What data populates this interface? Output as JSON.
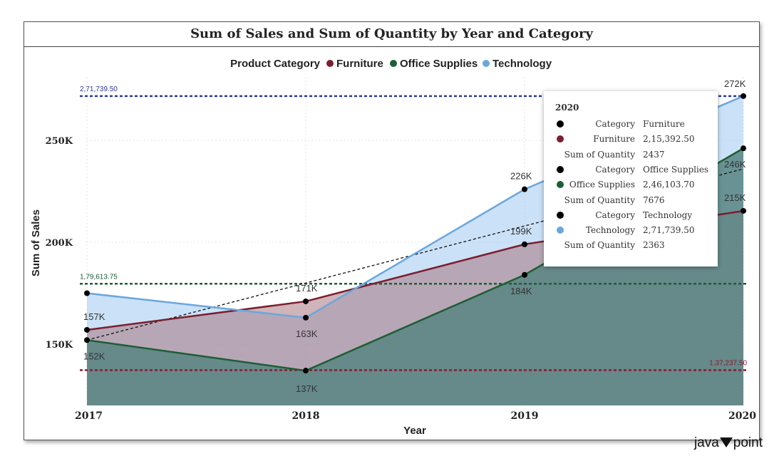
{
  "chart_data": {
    "type": "area",
    "title": "Sum of Sales and Sum of Quantity by Year and Category",
    "legend_title": "Product Category",
    "legend_position": "top-center",
    "xlabel": "Year",
    "ylabel": "Sum of Sales",
    "categories": [
      "2017",
      "2018",
      "2019",
      "2020"
    ],
    "ylim": [
      120000,
      280000
    ],
    "yticks": [
      {
        "value": 150000,
        "label": "150K"
      },
      {
        "value": 200000,
        "label": "200K"
      },
      {
        "value": 250000,
        "label": "250K"
      }
    ],
    "series": [
      {
        "name": "Furniture",
        "color": "#7b1e2e",
        "values": [
          157000,
          171000,
          199000,
          215392.5
        ],
        "labels": [
          "157K",
          "171K",
          "199K",
          "215K"
        ]
      },
      {
        "name": "Office Supplies",
        "color": "#1d5e34",
        "values": [
          152000,
          137000,
          184000,
          246103.7
        ],
        "labels": [
          "152K",
          "137K",
          "184K",
          "246K"
        ]
      },
      {
        "name": "Technology",
        "color": "#6aa7dd",
        "values": [
          175000,
          163000,
          226000,
          271739.5
        ],
        "labels": [
          "",
          "163K",
          "226K",
          "272K"
        ]
      }
    ],
    "reference_lines": [
      {
        "value": 271739.5,
        "label": "2,71,739.50",
        "color": "#2b3a9a",
        "label_side": "left"
      },
      {
        "value": 179613.75,
        "label": "1,79,613.75",
        "color": "#1d5e34",
        "label_side": "left"
      },
      {
        "value": 137237.5,
        "label": "1,37,237.50",
        "color": "#8b1a2b",
        "label_side": "right"
      }
    ],
    "trend_line": {
      "from": 152000,
      "to": 236000,
      "color": "#111111"
    }
  },
  "tooltip": {
    "year": "2020",
    "rows": [
      {
        "label": "Category",
        "value": "Furniture",
        "dot": "#000000"
      },
      {
        "label": "Furniture",
        "value": "2,15,392.50",
        "dot": "#7b1e2e"
      },
      {
        "label": "Sum of Quantity",
        "value": "2437",
        "dot": ""
      },
      {
        "label": "Category",
        "value": "Office Supplies",
        "dot": "#000000"
      },
      {
        "label": "Office Supplies",
        "value": "2,46,103.70",
        "dot": "#1d5e34"
      },
      {
        "label": "Sum of Quantity",
        "value": "7676",
        "dot": ""
      },
      {
        "label": "Category",
        "value": "Technology",
        "dot": "#000000"
      },
      {
        "label": "Technology",
        "value": "2,71,739.50",
        "dot": "#6aa7dd"
      },
      {
        "label": "Sum of Quantity",
        "value": "2363",
        "dot": ""
      }
    ]
  },
  "watermark": {
    "left": "java",
    "right": "point"
  }
}
